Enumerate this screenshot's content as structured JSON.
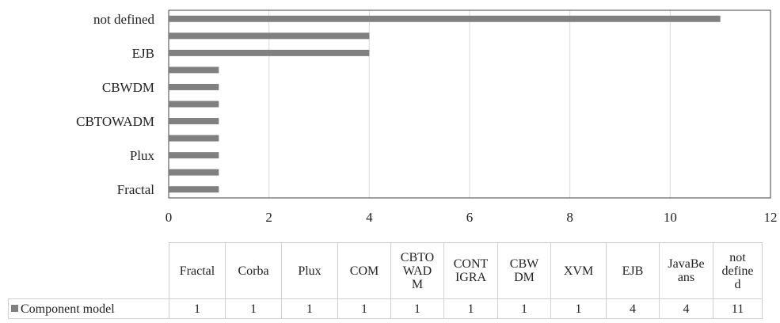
{
  "chart_data": {
    "type": "bar",
    "orientation": "horizontal",
    "categories": [
      "Fractal",
      "Corba",
      "Plux",
      "COM",
      "CBTOWADM",
      "CONTIGRA",
      "CBWDM",
      "XVM",
      "EJB",
      "JavaBeans",
      "not defined"
    ],
    "axis_category_labels": [
      "not defined",
      "EJB",
      "CBWDM",
      "CBTOWADM",
      "Plux",
      "Fractal"
    ],
    "table_headers": [
      "Fractal",
      "Corba",
      "Plux",
      "COM",
      "CBTO\nWAD\nM",
      "CONT\nIGRA",
      "CBW\nDM",
      "XVM",
      "EJB",
      "JavaBe\nans",
      "not\ndefine\nd"
    ],
    "series": [
      {
        "name": "Component model",
        "values": [
          1,
          1,
          1,
          1,
          1,
          1,
          1,
          1,
          4,
          4,
          11
        ]
      }
    ],
    "xlim": [
      0,
      12
    ],
    "xticks": [
      0,
      2,
      4,
      6,
      8,
      10,
      12
    ],
    "grid": true,
    "legend": "data-table",
    "title": "",
    "xlabel": "",
    "ylabel": "",
    "colors": {
      "bar": "#808080",
      "grid": "#d9d9d9",
      "frame": "#404040"
    }
  }
}
